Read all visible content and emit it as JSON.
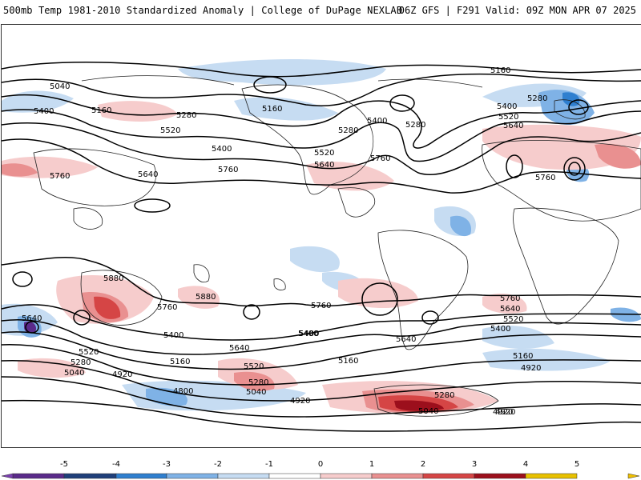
{
  "header": {
    "title_left": "500mb Temp 1981-2010 Standardized Anomaly | College of DuPage NEXLAB",
    "title_right": "06Z GFS | F291 Valid: 09Z MON APR 07 2025"
  },
  "colorbar": {
    "ticks": [
      "-5",
      "-4",
      "-3",
      "-2",
      "-1",
      "0",
      "1",
      "2",
      "3",
      "4",
      "5"
    ],
    "colors": [
      "#5a2a8a",
      "#1f3f7a",
      "#2f7fcf",
      "#7fb2e6",
      "#c6dcf2",
      "#ffffff",
      "#f6cccc",
      "#e99090",
      "#d54545",
      "#9c0f1c",
      "#e8c100"
    ]
  },
  "contour_labels": [
    {
      "text": "5160"
    },
    {
      "text": "5040"
    },
    {
      "text": "5400"
    },
    {
      "text": "5160"
    },
    {
      "text": "5280"
    },
    {
      "text": "5520"
    },
    {
      "text": "5160"
    },
    {
      "text": "5400"
    },
    {
      "text": "5280"
    },
    {
      "text": "5400"
    },
    {
      "text": "5280"
    },
    {
      "text": "5520"
    },
    {
      "text": "5640"
    },
    {
      "text": "5760"
    },
    {
      "text": "5280"
    },
    {
      "text": "5400"
    },
    {
      "text": "5520"
    },
    {
      "text": "5640"
    },
    {
      "text": "5760"
    },
    {
      "text": "5640"
    },
    {
      "text": "5760"
    },
    {
      "text": "5760"
    },
    {
      "text": "5880"
    },
    {
      "text": "5880"
    },
    {
      "text": "5760"
    },
    {
      "text": "5640"
    },
    {
      "text": "5400"
    },
    {
      "text": "5520"
    },
    {
      "text": "5280"
    },
    {
      "text": "5040"
    },
    {
      "text": "5160"
    },
    {
      "text": "4920"
    },
    {
      "text": "5400"
    },
    {
      "text": "5640"
    },
    {
      "text": "5520"
    },
    {
      "text": "5280"
    },
    {
      "text": "5040"
    },
    {
      "text": "4800"
    },
    {
      "text": "4920"
    },
    {
      "text": "5160"
    },
    {
      "text": "5760"
    },
    {
      "text": "5400"
    },
    {
      "text": "5640"
    },
    {
      "text": "5280"
    },
    {
      "text": "5040"
    },
    {
      "text": "4920"
    },
    {
      "text": "5760"
    },
    {
      "text": "5640"
    },
    {
      "text": "5520"
    },
    {
      "text": "5400"
    },
    {
      "text": "5160"
    },
    {
      "text": "4920"
    },
    {
      "text": "4920"
    }
  ]
}
